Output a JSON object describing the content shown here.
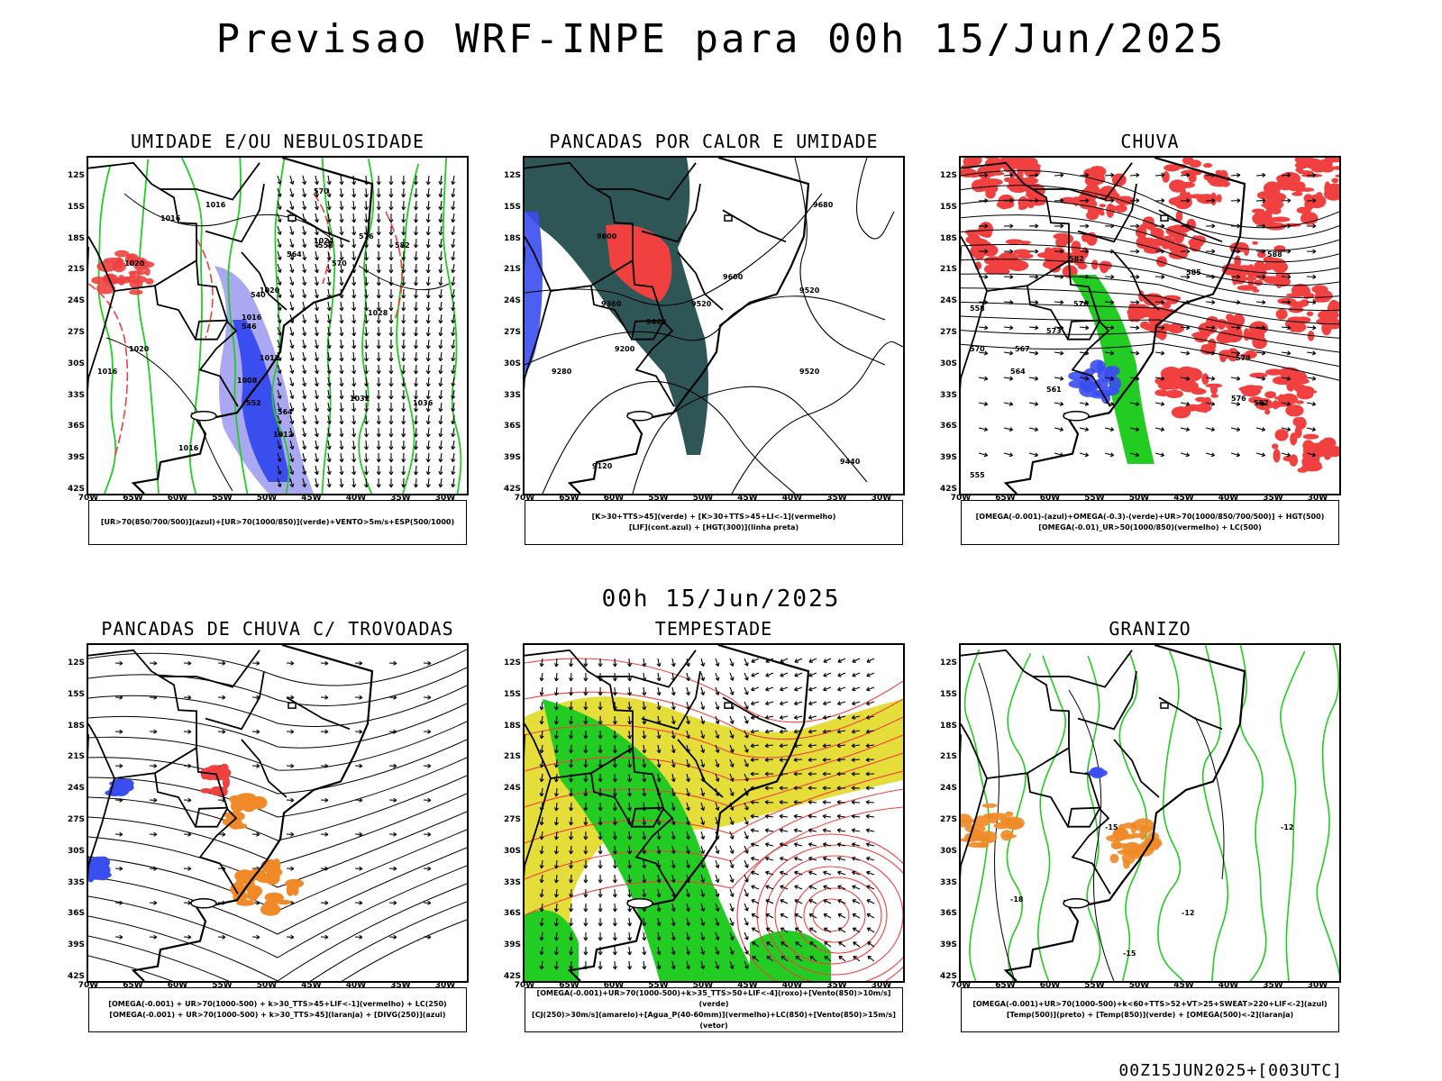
{
  "title": "Previsao WRF-INPE  para 00h 15/Jun/2025",
  "subtitle": "00h 15/Jun/2025",
  "footer": "00Z15JUN2025+[003UTC]",
  "axes": {
    "lat_labels": [
      "12S",
      "15S",
      "18S",
      "21S",
      "24S",
      "27S",
      "30S",
      "33S",
      "36S",
      "39S",
      "42S"
    ],
    "lon_labels": [
      "70W",
      "65W",
      "60W",
      "55W",
      "50W",
      "45W",
      "40W",
      "35W",
      "30W"
    ]
  },
  "colors": {
    "green": "#22cc22",
    "red": "#f04040",
    "blue": "#3a4ef0",
    "light_blue": "#a9a8f0",
    "dark_teal": "#2f5656",
    "yellow": "#e5dd3a",
    "orange": "#f08a28",
    "black": "#000000"
  },
  "panels": [
    {
      "id": "umidade",
      "title": "UMIDADE E/OU NEBULOSIDADE",
      "legend": [
        "[UR>70(850/700/500)](azul)+[UR>70(1000/850)](verde)+VENTO>5m/s+ESP(500/1000)"
      ],
      "contour_labels": [
        "1016",
        "1016",
        "1020",
        "1024",
        "1020",
        "1016",
        "1012",
        "1008",
        "1012",
        "1032",
        "1036",
        "1016",
        "1016",
        "1020",
        "1028",
        "570",
        "564",
        "558",
        "552",
        "546",
        "540",
        "564",
        "570",
        "576",
        "582"
      ]
    },
    {
      "id": "pancadas_calor",
      "title": "PANCADAS POR CALOR E UMIDADE",
      "legend": [
        "[K>30+TTS>45](verde) + [K>30+TTS>45+LI<-1](vermelho)",
        "[LIF](cont.azul) + [HGT(300)](linha preta)"
      ],
      "contour_labels": [
        "9680",
        "9600",
        "9520",
        "9600",
        "9520",
        "9360",
        "9440",
        "9200",
        "9280",
        "9520",
        "9440",
        "9120"
      ]
    },
    {
      "id": "chuva",
      "title": "CHUVA",
      "legend": [
        "[OMEGA(-0.001)-(azul)+OMEGA(-0.3)-(verde)+UR>70(1000/850/700/500)] + HGT(500)",
        "[OMEGA(-0.01)_UR>50(1000/850)(vermelho) + LC(500)"
      ],
      "contour_labels": [
        "582",
        "585",
        "588",
        "576",
        "573",
        "567",
        "564",
        "561",
        "558",
        "570",
        "582",
        "579",
        "576",
        "555"
      ]
    },
    {
      "id": "trovoadas",
      "title": "PANCADAS DE CHUVA C/ TROVOADAS",
      "legend": [
        "[OMEGA(-0.001) + UR>70(1000-500) + k>30_TTS>45+LIF<-1](vermelho) + LC(250)",
        "[OMEGA(-0.001) + UR>70(1000-500) + k>30_TTS>45](laranja) + [DIVG(250)](azul)"
      ],
      "contour_labels": []
    },
    {
      "id": "tempestade",
      "title": "TEMPESTADE",
      "legend": [
        "[OMEGA(-0.001)+UR>70(1000-500)+k>35_TTS>50+LIF<-4](roxo)+[Vento(850)>10m/s](verde)",
        "[CJ(250)>30m/s](amarelo)+[Agua_P(40-60mm)](vermelho)+LC(850)+[Vento(850)>15m/s](vetor)"
      ],
      "contour_labels": []
    },
    {
      "id": "granizo",
      "title": "GRANIZO",
      "legend": [
        "[OMEGA(-0.001)+UR>70(1000-500)+k<60+TTS>52+VT>25+SWEAT>220+LIF<-2](azul)",
        "[Temp(500)](preto) + [Temp(850)](verde) + [OMEGA(500)<-2](laranja)"
      ],
      "contour_labels": [
        "-18",
        "-15",
        "-12",
        "-12",
        "-15"
      ]
    }
  ]
}
